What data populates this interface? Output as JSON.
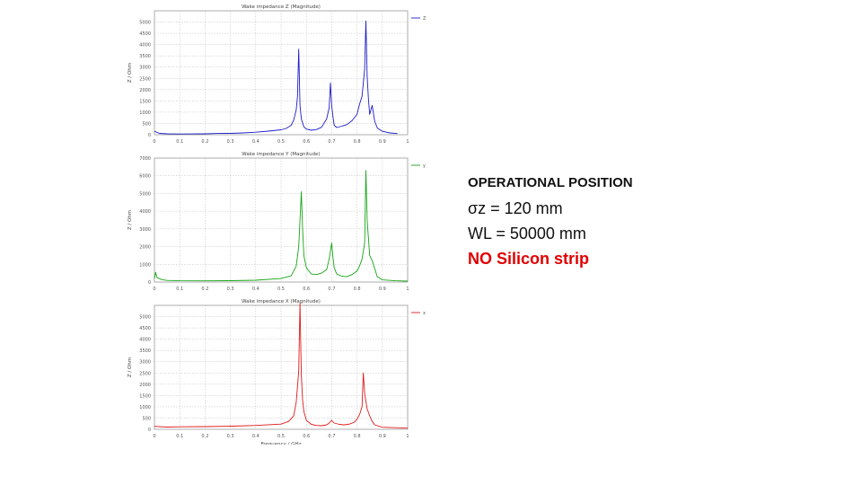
{
  "chart_data": [
    {
      "type": "line",
      "title": "Wake impedance Z (Magnitude)",
      "xlabel": "",
      "ylabel": "Z / Ohm",
      "ylim": [
        0,
        5500
      ],
      "xlim": [
        0,
        1
      ],
      "y_ticks": [
        "0",
        "500",
        "1000",
        "1500",
        "2000",
        "2500",
        "3000",
        "3500",
        "4000",
        "4500",
        "5000"
      ],
      "x_ticks": [
        "0",
        "0.1",
        "0.2",
        "0.3",
        "0.4",
        "0.5",
        "0.6",
        "0.7",
        "0.8",
        "0.9",
        "1"
      ],
      "grid": true,
      "legend": "top-right",
      "series": [
        {
          "name": "Z",
          "color": "#1c1cc8",
          "x": [
            0,
            0.02,
            0.05,
            0.1,
            0.15,
            0.2,
            0.25,
            0.3,
            0.35,
            0.4,
            0.45,
            0.5,
            0.52,
            0.54,
            0.55,
            0.56,
            0.565,
            0.57,
            0.575,
            0.58,
            0.59,
            0.6,
            0.62,
            0.64,
            0.66,
            0.68,
            0.69,
            0.695,
            0.7,
            0.705,
            0.71,
            0.72,
            0.74,
            0.76,
            0.78,
            0.8,
            0.81,
            0.82,
            0.83,
            0.835,
            0.84,
            0.845,
            0.85,
            0.86,
            0.87,
            0.88,
            0.9,
            0.93,
            0.96
          ],
          "y": [
            150,
            60,
            40,
            30,
            35,
            40,
            55,
            60,
            80,
            110,
            160,
            220,
            280,
            420,
            650,
            1100,
            1700,
            3800,
            1300,
            700,
            350,
            250,
            200,
            230,
            330,
            700,
            1200,
            2300,
            1300,
            800,
            420,
            320,
            380,
            450,
            620,
            900,
            1350,
            1700,
            2900,
            5050,
            2600,
            1600,
            900,
            1300,
            600,
            300,
            150,
            80,
            50
          ]
        }
      ]
    },
    {
      "type": "line",
      "title": "Wake impedance Y (Magnitude)",
      "xlabel": "",
      "ylabel": "Z / Ohm",
      "ylim": [
        0,
        7000
      ],
      "xlim": [
        0,
        1
      ],
      "y_ticks": [
        "0",
        "1000",
        "2000",
        "3000",
        "4000",
        "5000",
        "6000",
        "7000"
      ],
      "x_ticks": [
        "0",
        "0.1",
        "0.2",
        "0.3",
        "0.4",
        "0.5",
        "0.6",
        "0.7",
        "0.8",
        "0.9",
        "1"
      ],
      "grid": true,
      "legend": "top-right",
      "series": [
        {
          "name": "y",
          "color": "#16a516",
          "x": [
            0,
            0.005,
            0.01,
            0.03,
            0.05,
            0.1,
            0.2,
            0.3,
            0.4,
            0.5,
            0.54,
            0.56,
            0.57,
            0.58,
            0.585,
            0.59,
            0.6,
            0.62,
            0.64,
            0.66,
            0.68,
            0.69,
            0.7,
            0.705,
            0.71,
            0.72,
            0.74,
            0.76,
            0.78,
            0.8,
            0.81,
            0.82,
            0.83,
            0.835,
            0.84,
            0.85,
            0.86,
            0.88,
            0.9,
            0.95,
            1.0
          ],
          "y": [
            200,
            550,
            250,
            130,
            90,
            70,
            65,
            75,
            100,
            200,
            350,
            900,
            2000,
            5100,
            3000,
            1500,
            800,
            450,
            420,
            500,
            700,
            1300,
            2200,
            1400,
            800,
            450,
            330,
            300,
            420,
            620,
            900,
            1300,
            2200,
            6300,
            3500,
            1500,
            1200,
            300,
            120,
            70,
            50
          ]
        }
      ]
    },
    {
      "type": "line",
      "title": "Wake impedance X (Magnitude)",
      "xlabel": "Frequency / GHz",
      "ylabel": "Z / Ohm",
      "ylim": [
        0,
        5500
      ],
      "xlim": [
        0,
        1
      ],
      "y_ticks": [
        "0",
        "500",
        "1000",
        "1500",
        "2000",
        "2500",
        "3000",
        "3500",
        "4000",
        "4500",
        "5000"
      ],
      "x_ticks": [
        "0",
        "0.1",
        "0.2",
        "0.3",
        "0.4",
        "0.5",
        "0.6",
        "0.7",
        "0.8",
        "0.9",
        "1"
      ],
      "grid": true,
      "legend": "top-right",
      "series": [
        {
          "name": "x",
          "color": "#e01a1a",
          "x": [
            0,
            0.05,
            0.1,
            0.2,
            0.3,
            0.4,
            0.5,
            0.53,
            0.55,
            0.56,
            0.57,
            0.575,
            0.58,
            0.585,
            0.59,
            0.6,
            0.62,
            0.64,
            0.66,
            0.68,
            0.69,
            0.7,
            0.71,
            0.73,
            0.75,
            0.77,
            0.79,
            0.8,
            0.81,
            0.82,
            0.825,
            0.83,
            0.84,
            0.85,
            0.86,
            0.87,
            0.9,
            1.0
          ],
          "y": [
            130,
            100,
            110,
            120,
            140,
            170,
            230,
            350,
            600,
            1200,
            2600,
            5600,
            2400,
            1300,
            800,
            400,
            220,
            170,
            160,
            200,
            280,
            400,
            280,
            220,
            200,
            230,
            320,
            450,
            650,
            1000,
            2500,
            1600,
            900,
            600,
            350,
            200,
            90,
            50
          ]
        }
      ]
    }
  ],
  "notes": {
    "heading": "OPERATIONAL POSITION",
    "sigma_line": "σz = 120  mm",
    "wl_line": "WL = 50000 mm",
    "strip_line": "NO Silicon strip",
    "strip_color": "#e00000"
  }
}
